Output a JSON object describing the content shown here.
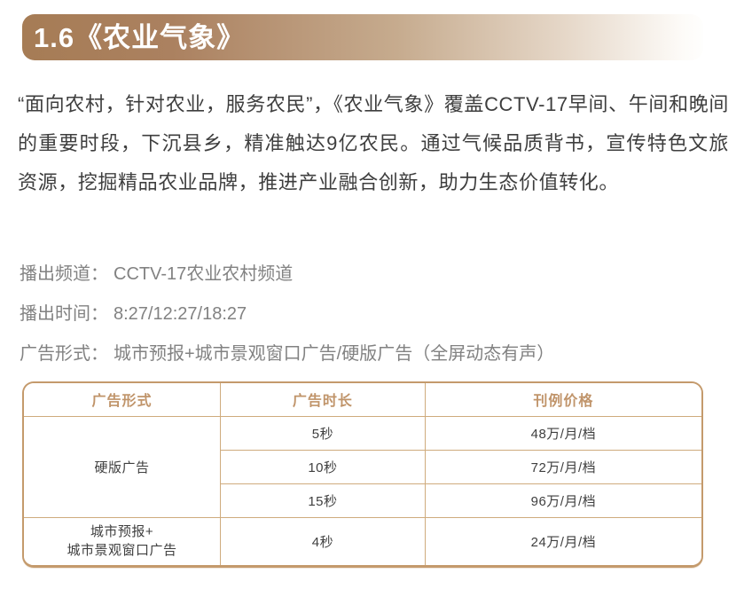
{
  "banner": {
    "title": "1.6《农业气象》"
  },
  "intro": "“面向农村，针对农业，服务农民”，《农业气象》覆盖CCTV-17早间、午间和晚间的重要时段，下沉县乡，精准触达9亿农民。通过气候品质背书，宣传特色文旅资源，挖掘精品农业品牌，推进产业融合创新，助力生态价值转化。",
  "info": {
    "channel_label": "播出频道：",
    "channel_value": "CCTV-17农业农村频道",
    "time_label": "播出时间：",
    "time_value": "8:27/12:27/18:27",
    "format_label": "广告形式：",
    "format_value": "城市预报+城市景观窗口广告/硬版广告（全屏动态有声）"
  },
  "table": {
    "headers": [
      "广告形式",
      "广告时长",
      "刊例价格"
    ],
    "groups": [
      {
        "form": "硬版广告",
        "rows": [
          {
            "duration": "5秒",
            "price": "48万/月/档"
          },
          {
            "duration": "10秒",
            "price": "72万/月/档"
          },
          {
            "duration": "15秒",
            "price": "96万/月/档"
          }
        ]
      },
      {
        "form": "城市预报+\n城市景观窗口广告",
        "rows": [
          {
            "duration": "4秒",
            "price": "24万/月/档"
          }
        ]
      }
    ]
  },
  "colors": {
    "banner_brown": "#a67c55",
    "banner_fade": "#fdfbf8",
    "table_border": "#c49a6c",
    "table_inner_border": "#cfab7d",
    "header_text": "#c0946a",
    "body_text": "#3e3e3e",
    "info_text": "#828282"
  }
}
